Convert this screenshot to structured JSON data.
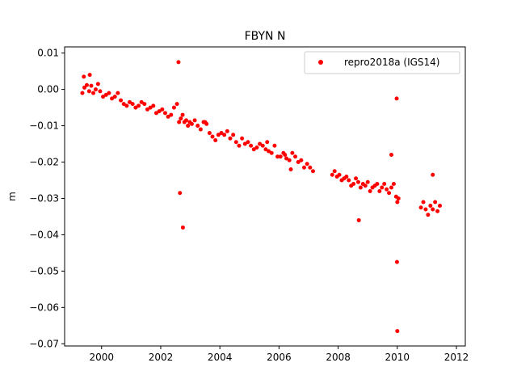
{
  "chart_data": {
    "type": "scatter",
    "title": "FBYN N",
    "xlabel": "",
    "ylabel": "m",
    "xlim": [
      1998.75,
      2012.3
    ],
    "ylim": [
      -0.0706,
      0.0117
    ],
    "xticks": [
      2000,
      2002,
      2004,
      2006,
      2008,
      2010,
      2012
    ],
    "yticks": [
      0.01,
      0.0,
      -0.01,
      -0.02,
      -0.03,
      -0.04,
      -0.05,
      -0.06,
      -0.07
    ],
    "ytick_labels": [
      "0.01",
      "0.00",
      "−0.01",
      "−0.02",
      "−0.03",
      "−0.04",
      "−0.05",
      "−0.06",
      "−0.07"
    ],
    "grid": false,
    "legend_position": "top-right",
    "series": [
      {
        "name": "repro2018a (IGS14)",
        "color": "#ff0000",
        "marker": "circle",
        "x": [
          1999.35,
          1999.42,
          1999.5,
          1999.58,
          1999.65,
          1999.72,
          1999.8,
          1999.88,
          1999.95,
          2000.05,
          2000.15,
          2000.25,
          2000.35,
          2000.45,
          2000.55,
          2000.65,
          2000.75,
          2000.85,
          2000.95,
          2001.05,
          2001.15,
          2001.25,
          2001.35,
          2001.45,
          2001.55,
          2001.65,
          2001.75,
          2001.85,
          2001.95,
          2002.05,
          2002.15,
          2002.25,
          2002.35,
          2002.45,
          2002.55,
          2002.62,
          2002.68,
          2002.74,
          2002.8,
          2002.86,
          2002.92,
          2002.98,
          2003.05,
          2003.15,
          2003.25,
          2003.35,
          2003.45,
          2003.55,
          2003.65,
          2003.75,
          2003.85,
          2003.95,
          2004.05,
          2004.15,
          2004.25,
          2004.35,
          2004.45,
          2004.55,
          2004.65,
          2004.75,
          2004.85,
          2004.95,
          2005.05,
          2005.15,
          2005.25,
          2005.35,
          2005.45,
          2005.55,
          2005.65,
          2005.75,
          2005.85,
          2005.95,
          2006.05,
          2006.15,
          2006.25,
          2006.35,
          2006.45,
          2006.55,
          2006.65,
          2006.75,
          2006.85,
          2006.95,
          2007.05,
          2007.15,
          2007.8,
          2007.88,
          2007.96,
          2008.04,
          2008.12,
          2008.2,
          2008.28,
          2008.36,
          2008.44,
          2008.52,
          2008.6,
          2008.68,
          2008.76,
          2008.84,
          2008.92,
          2009.0,
          2009.08,
          2009.16,
          2009.24,
          2009.32,
          2009.4,
          2009.48,
          2009.56,
          2009.64,
          2009.72,
          2009.8,
          2009.88,
          2009.96,
          2010.0,
          2010.04,
          2010.8,
          2010.88,
          2010.96,
          2011.04,
          2011.12,
          2011.2,
          2011.28,
          2011.36,
          2011.44,
          1999.4,
          1999.6,
          2002.6,
          2002.65,
          2002.75,
          2003.5,
          2005.6,
          2006.2,
          2006.4,
          2008.7,
          2009.8,
          2009.98,
          2009.99,
          2010.0,
          2011.2
        ],
        "y": [
          -0.001,
          0.0005,
          0.0012,
          -0.0005,
          0.001,
          -0.001,
          0.0,
          0.0015,
          -0.0005,
          -0.002,
          -0.0015,
          -0.001,
          -0.0025,
          -0.002,
          -0.001,
          -0.003,
          -0.004,
          -0.0045,
          -0.0035,
          -0.004,
          -0.005,
          -0.0045,
          -0.0035,
          -0.004,
          -0.0055,
          -0.005,
          -0.0045,
          -0.0065,
          -0.006,
          -0.0055,
          -0.0065,
          -0.0075,
          -0.007,
          -0.005,
          -0.004,
          -0.009,
          -0.008,
          -0.007,
          -0.009,
          -0.0085,
          -0.01,
          -0.009,
          -0.0095,
          -0.0085,
          -0.01,
          -0.011,
          -0.009,
          -0.0095,
          -0.012,
          -0.013,
          -0.014,
          -0.0125,
          -0.012,
          -0.0125,
          -0.0115,
          -0.0135,
          -0.0125,
          -0.0145,
          -0.0155,
          -0.0135,
          -0.015,
          -0.0145,
          -0.0155,
          -0.0165,
          -0.016,
          -0.015,
          -0.0155,
          -0.0165,
          -0.017,
          -0.0175,
          -0.0155,
          -0.0185,
          -0.0185,
          -0.0175,
          -0.019,
          -0.0195,
          -0.0175,
          -0.0185,
          -0.02,
          -0.0195,
          -0.0215,
          -0.0205,
          -0.0215,
          -0.0225,
          -0.0235,
          -0.0225,
          -0.024,
          -0.0235,
          -0.025,
          -0.0245,
          -0.024,
          -0.025,
          -0.0265,
          -0.026,
          -0.0245,
          -0.0255,
          -0.027,
          -0.026,
          -0.0265,
          -0.0255,
          -0.028,
          -0.027,
          -0.0265,
          -0.026,
          -0.028,
          -0.027,
          -0.026,
          -0.0275,
          -0.0285,
          -0.027,
          -0.026,
          -0.0295,
          -0.031,
          -0.03,
          -0.0325,
          -0.031,
          -0.033,
          -0.0345,
          -0.032,
          -0.033,
          -0.031,
          -0.0335,
          -0.032,
          0.0035,
          0.004,
          0.0075,
          -0.0285,
          -0.038,
          -0.009,
          -0.0145,
          -0.018,
          -0.022,
          -0.036,
          -0.018,
          -0.0025,
          -0.0475,
          -0.0665,
          -0.0235
        ]
      }
    ]
  }
}
